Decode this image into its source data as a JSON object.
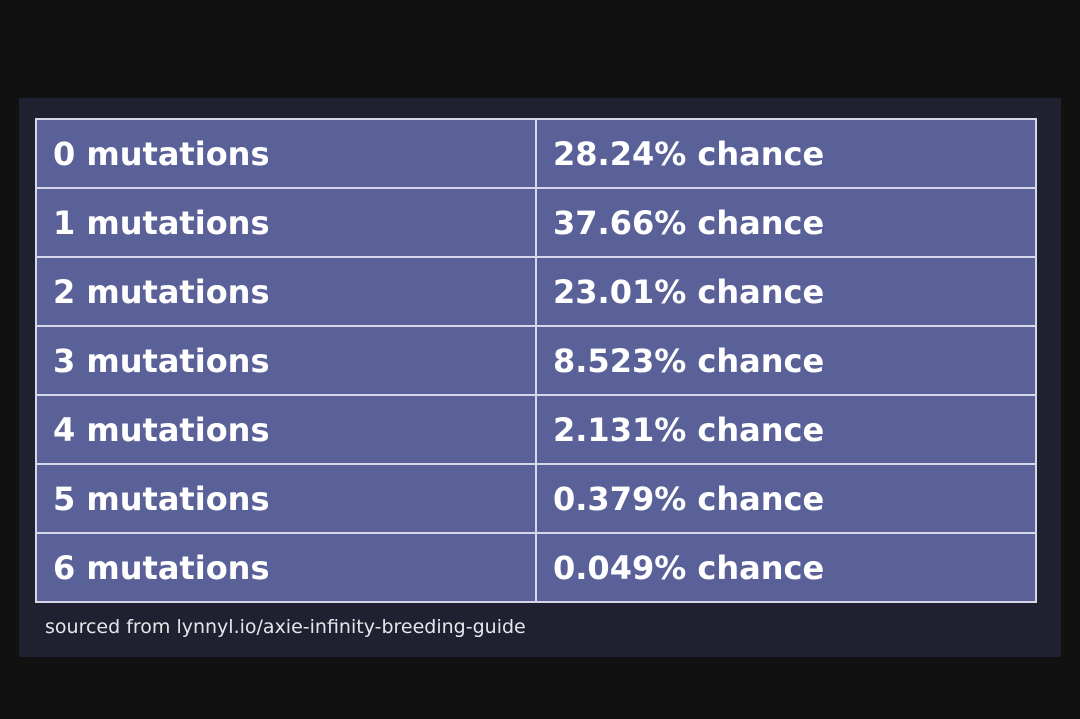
{
  "table": {
    "rows": [
      [
        "0 mutations",
        "28.24% chance"
      ],
      [
        "1 mutations",
        "37.66% chance"
      ],
      [
        "2 mutations",
        "23.01% chance"
      ],
      [
        "3 mutations",
        "8.523% chance"
      ],
      [
        "4 mutations",
        "2.131% chance"
      ],
      [
        "5 mutations",
        "0.379% chance"
      ],
      [
        "6 mutations",
        "0.049% chance"
      ]
    ]
  },
  "source": "sourced from lynnyl.io/axie-infinity-breeding-guide"
}
